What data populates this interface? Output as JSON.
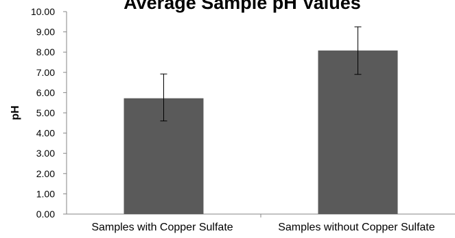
{
  "chart_data": {
    "type": "bar",
    "title": "Average Sample pH Values",
    "xlabel": "",
    "ylabel": "pH",
    "categories": [
      "Samples with Copper Sulfate",
      "Samples without Copper Sulfate"
    ],
    "values": [
      5.72,
      8.08
    ],
    "error_low": [
      4.6,
      6.9
    ],
    "error_high": [
      6.92,
      9.25
    ],
    "ylim": [
      0,
      10
    ],
    "yticks": [
      "0.00",
      "1.00",
      "2.00",
      "3.00",
      "4.00",
      "5.00",
      "6.00",
      "7.00",
      "8.00",
      "9.00",
      "10.00"
    ],
    "grid": false,
    "legend": "none",
    "bar_color": "#5a5a5a",
    "axis_color": "#868686",
    "error_bar_color": "#000000"
  }
}
